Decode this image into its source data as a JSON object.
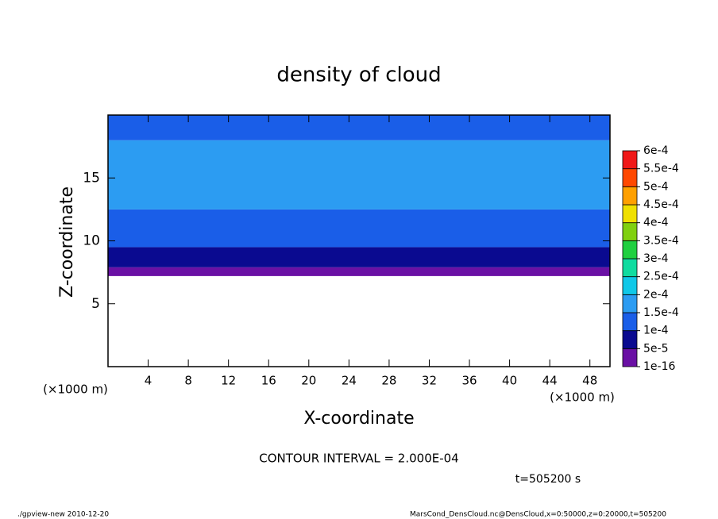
{
  "chart_data": {
    "type": "contour",
    "title": "density of cloud",
    "x_label": "X-coordinate",
    "y_label": "Z-coordinate",
    "x_unit": "(×1000 m)",
    "y_unit": "(×1000 m)",
    "xlim": [
      0,
      50
    ],
    "xticks": [
      4,
      8,
      12,
      16,
      20,
      24,
      28,
      32,
      36,
      40,
      44,
      48
    ],
    "ylim": [
      0,
      20
    ],
    "yticks": [
      5,
      10,
      15
    ],
    "z_edges": [
      7.2,
      7.9,
      9.5,
      12.5,
      18,
      20
    ],
    "values": [
      3e-05,
      7e-05,
      0.00012,
      0.00016,
      0.00012
    ],
    "levels": [
      {
        "value": 1e-16,
        "label": "1e-16"
      },
      {
        "value": 5e-05,
        "label": "5e-5"
      },
      {
        "value": 0.0001,
        "label": "1e-4"
      },
      {
        "value": 0.00015,
        "label": "1.5e-4"
      },
      {
        "value": 0.0002,
        "label": "2e-4"
      },
      {
        "value": 0.00025,
        "label": "2.5e-4"
      },
      {
        "value": 0.0003,
        "label": "3e-4"
      },
      {
        "value": 0.00035,
        "label": "3.5e-4"
      },
      {
        "value": 0.0004,
        "label": "4e-4"
      },
      {
        "value": 0.00045,
        "label": "4.5e-4"
      },
      {
        "value": 0.0005,
        "label": "5e-4"
      },
      {
        "value": 0.00055,
        "label": "5.5e-4"
      },
      {
        "value": 0.0006,
        "label": "6e-4"
      }
    ],
    "colors": [
      "#6a10a4",
      "#0a0a90",
      "#1a5ee8",
      "#2c9cf2",
      "#10c8e8",
      "#10dca0",
      "#20d040",
      "#80d010",
      "#f0e000",
      "#ffa000",
      "#ff4800",
      "#f01818"
    ],
    "contour_interval": "CONTOUR INTERVAL = 2.000E-04",
    "time_label": "t=505200 s",
    "footer_left": "./gpview-new   2010-12-20",
    "footer_right": "MarsCond_DensCloud.nc@DensCloud,x=0:50000,z=0:20000,t=505200"
  }
}
